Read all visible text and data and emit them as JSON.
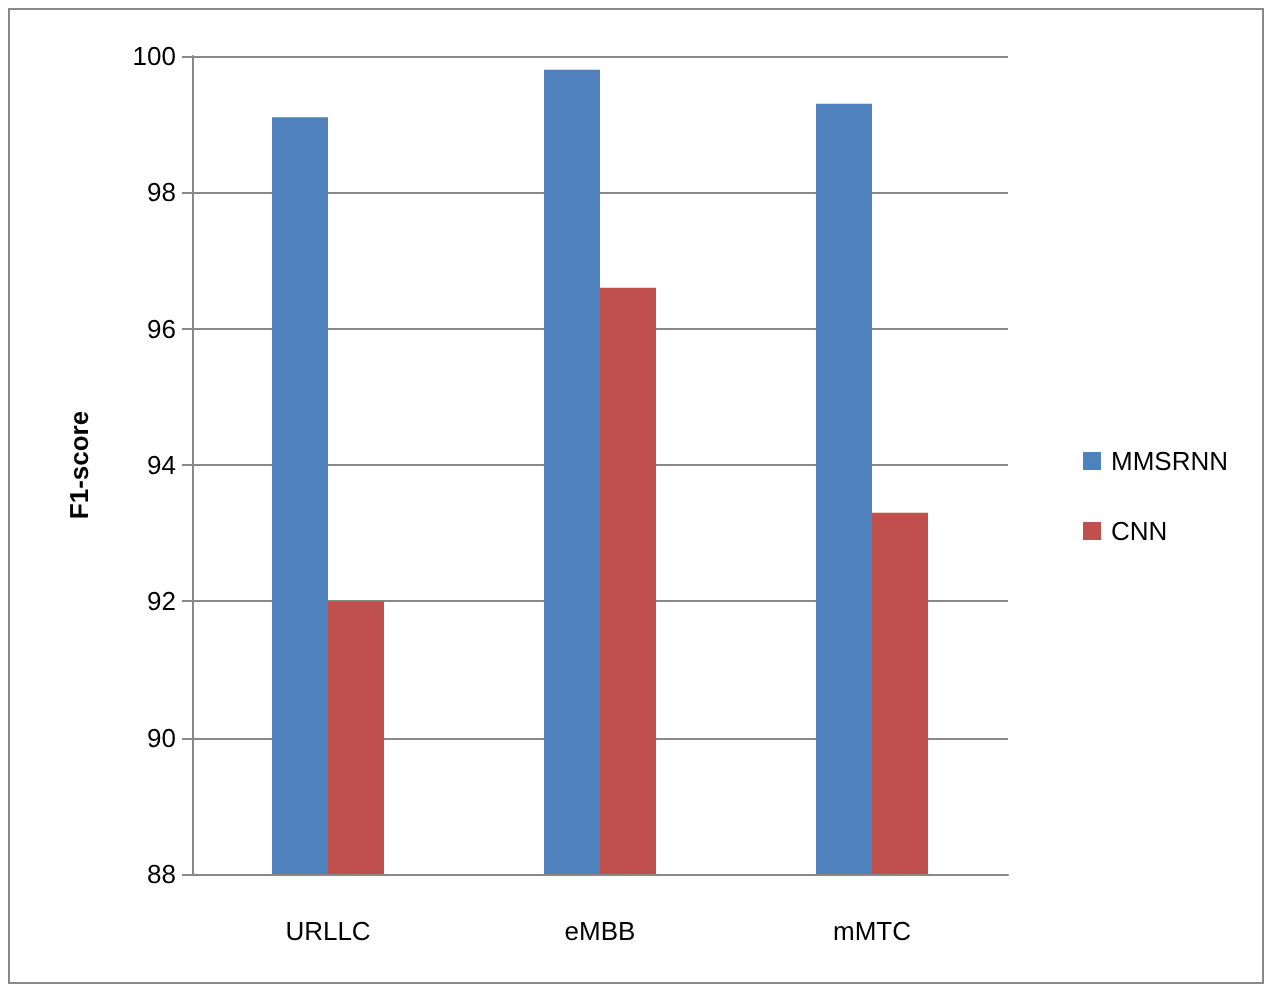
{
  "chart_data": {
    "type": "bar",
    "ylabel": "F1-score",
    "categories": [
      "URLLC",
      "eMBB",
      "mMTC"
    ],
    "series": [
      {
        "name": "MMSRNN",
        "color": "#4f81bd",
        "values": [
          99.1,
          99.8,
          99.3
        ]
      },
      {
        "name": "CNN",
        "color": "#c0504d",
        "values": [
          92.0,
          96.6,
          93.3
        ]
      }
    ],
    "ylim": [
      88,
      100
    ],
    "yticks": [
      88,
      90,
      92,
      94,
      96,
      98,
      100
    ],
    "grid": "y",
    "legend": "right"
  }
}
